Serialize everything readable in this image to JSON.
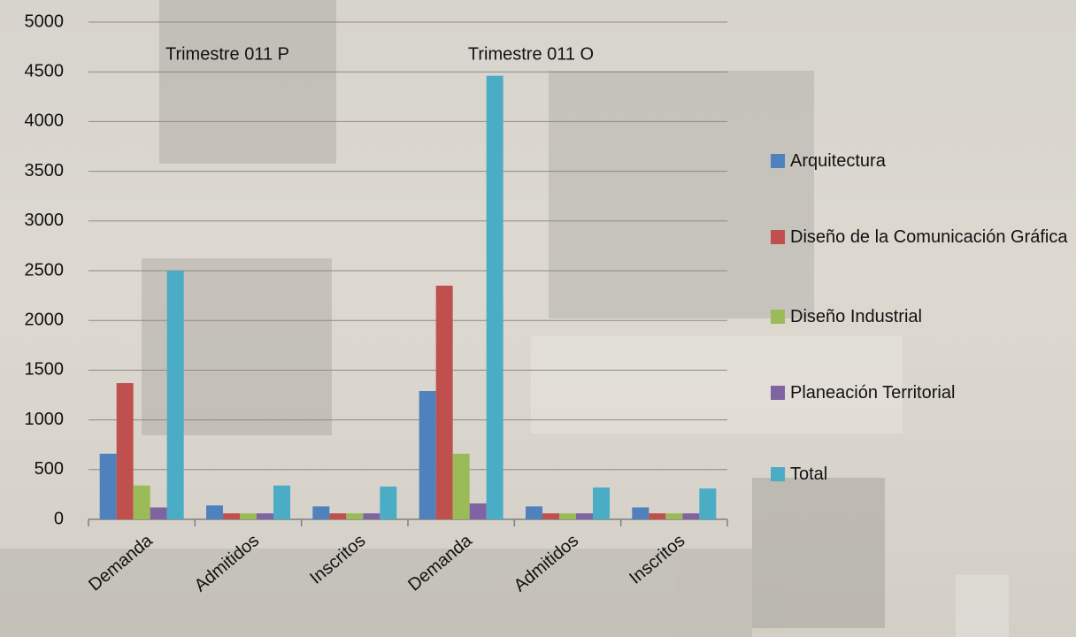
{
  "chart_data": {
    "type": "bar",
    "categories": [
      "Demanda",
      "Admitidos",
      "Inscritos",
      "Demanda",
      "Admitidos",
      "Inscritos"
    ],
    "annotations": [
      "Trimestre 011 P",
      "Trimestre 011 O"
    ],
    "series": [
      {
        "name": "Arquitectura",
        "color": "#4f81bd",
        "values": [
          660,
          140,
          130,
          1290,
          130,
          120
        ]
      },
      {
        "name": "Diseño de la Comunicación Gráfica",
        "color": "#c0504d",
        "values": [
          1370,
          60,
          60,
          2350,
          60,
          60
        ]
      },
      {
        "name": "Diseño Industrial",
        "color": "#9bbb59",
        "values": [
          340,
          60,
          60,
          660,
          60,
          60
        ]
      },
      {
        "name": "Planeación Territorial",
        "color": "#8064a2",
        "values": [
          120,
          60,
          60,
          160,
          60,
          60
        ]
      },
      {
        "name": "Total",
        "color": "#4bacc6",
        "values": [
          2500,
          340,
          330,
          4460,
          320,
          310
        ]
      }
    ],
    "ylim": [
      0,
      5000
    ],
    "yticks": [
      0,
      500,
      1000,
      1500,
      2000,
      2500,
      3000,
      3500,
      4000,
      4500,
      5000
    ],
    "grid": true
  }
}
